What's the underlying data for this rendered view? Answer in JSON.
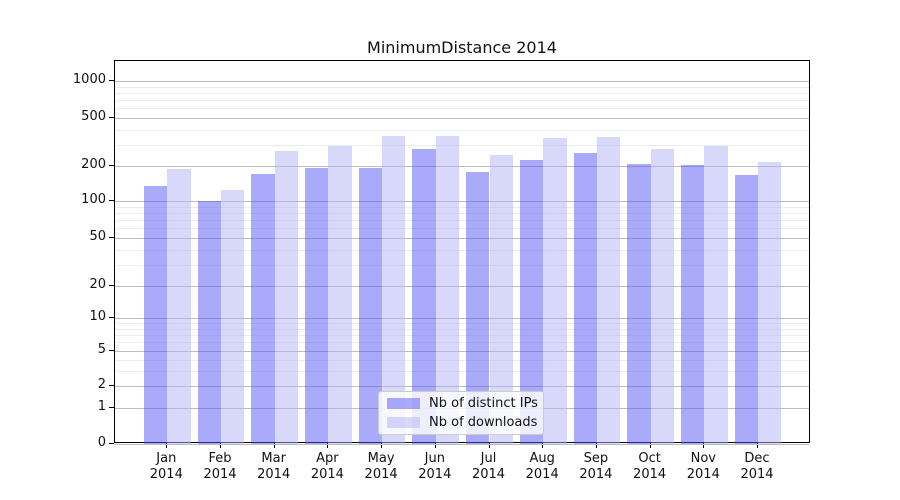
{
  "chart_data": {
    "type": "bar",
    "title": "MinimumDistance 2014",
    "categories": [
      {
        "month": "Jan",
        "year": "2014"
      },
      {
        "month": "Feb",
        "year": "2014"
      },
      {
        "month": "Mar",
        "year": "2014"
      },
      {
        "month": "Apr",
        "year": "2014"
      },
      {
        "month": "May",
        "year": "2014"
      },
      {
        "month": "Jun",
        "year": "2014"
      },
      {
        "month": "Jul",
        "year": "2014"
      },
      {
        "month": "Aug",
        "year": "2014"
      },
      {
        "month": "Sep",
        "year": "2014"
      },
      {
        "month": "Oct",
        "year": "2014"
      },
      {
        "month": "Nov",
        "year": "2014"
      },
      {
        "month": "Dec",
        "year": "2014"
      }
    ],
    "series": [
      {
        "name": "Nb of distinct IPs",
        "color": "#5555f5",
        "alpha": 0.5,
        "values": [
          135,
          100,
          172,
          192,
          191,
          275,
          178,
          226,
          254,
          208,
          202,
          166
        ]
      },
      {
        "name": "Nb of downloads",
        "color": "#b1b1f5",
        "alpha": 0.5,
        "values": [
          187,
          125,
          265,
          295,
          357,
          357,
          245,
          342,
          345,
          278,
          291,
          215
        ]
      }
    ],
    "xlabel": "",
    "ylabel": "",
    "yscale": "symlog",
    "yticks": [
      0,
      1,
      2,
      5,
      10,
      20,
      50,
      100,
      200,
      500,
      1000
    ],
    "yminorticks": [
      3,
      4,
      6,
      7,
      8,
      9,
      30,
      40,
      60,
      70,
      80,
      90,
      300,
      400,
      600,
      700,
      800,
      900
    ],
    "ylim": [
      0,
      1400
    ],
    "grid": true,
    "grid_major_color": "#bdbdbd",
    "grid_minor_color": "#ececec",
    "legend_position": "lower center"
  }
}
